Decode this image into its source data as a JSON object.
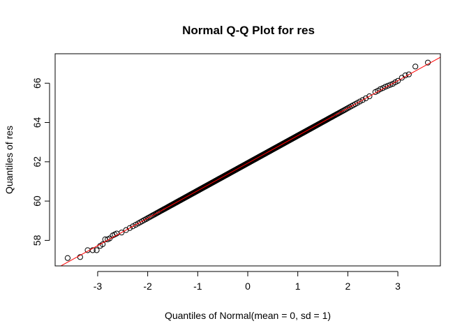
{
  "chart_data": {
    "type": "scatter",
    "title": "Normal Q-Q Plot for res",
    "xlabel": "Quantiles of Normal(mean = 0, sd = 1)",
    "ylabel": "Quantiles of res",
    "xlim": [
      -3.85,
      3.85
    ],
    "ylim": [
      56.7,
      67.5
    ],
    "x_ticks": [
      -3,
      -2,
      -1,
      0,
      1,
      2,
      3
    ],
    "x_tick_labels": [
      "-3",
      "-2",
      "-1",
      "0",
      "1",
      "2",
      "3"
    ],
    "y_ticks": [
      58,
      60,
      62,
      64,
      66
    ],
    "y_tick_labels": [
      "58",
      "60",
      "62",
      "64",
      "66"
    ],
    "reference_line": {
      "intercept": 61.93,
      "slope": 1.4,
      "color": "#ff0000"
    },
    "points_summary": {
      "description_count": 600,
      "point_color": "#000000",
      "line_color": "#ff0000"
    },
    "series": [
      {
        "x": [
          -3.6,
          -3.35,
          -3.2,
          -3.1,
          -3.02,
          -2.95,
          -2.9,
          -2.85,
          -2.8,
          -2.76,
          -2.7,
          -2.66,
          -2.62,
          2.55,
          2.6,
          2.65,
          2.7,
          2.75,
          2.8,
          2.85,
          2.9,
          2.95,
          3.0,
          3.08,
          3.15,
          3.22,
          3.35,
          3.6
        ],
        "y": [
          57.1,
          57.15,
          57.5,
          57.5,
          57.5,
          57.72,
          57.8,
          58.05,
          58.05,
          58.1,
          58.25,
          58.3,
          58.35,
          65.55,
          65.62,
          65.7,
          65.75,
          65.82,
          65.87,
          65.92,
          65.97,
          66.05,
          66.12,
          66.28,
          66.4,
          66.45,
          66.85,
          67.05
        ]
      }
    ],
    "grid": false,
    "legend": "none"
  }
}
